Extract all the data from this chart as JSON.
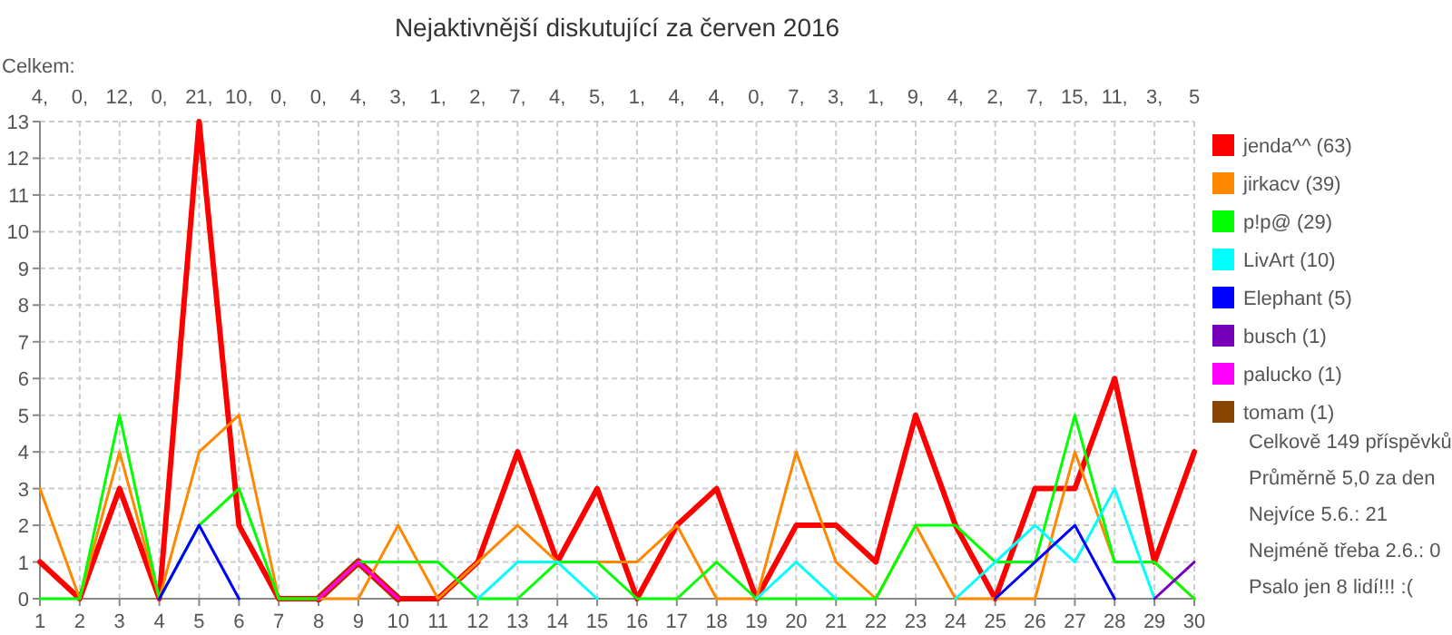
{
  "chart_data": {
    "type": "line",
    "title": "Nejaktivnější diskutující za červen 2016",
    "x": [
      1,
      2,
      3,
      4,
      5,
      6,
      7,
      8,
      9,
      10,
      11,
      12,
      13,
      14,
      15,
      16,
      17,
      18,
      19,
      20,
      21,
      22,
      23,
      24,
      25,
      26,
      27,
      28,
      29,
      30
    ],
    "xlim": [
      1,
      30
    ],
    "xticks": [
      1,
      2,
      3,
      4,
      5,
      6,
      7,
      8,
      9,
      10,
      11,
      12,
      13,
      14,
      15,
      16,
      17,
      18,
      19,
      20,
      21,
      22,
      23,
      24,
      25,
      26,
      27,
      28,
      29,
      30
    ],
    "ylim": [
      0,
      13
    ],
    "yticks": [
      0,
      1,
      2,
      3,
      4,
      5,
      6,
      7,
      8,
      9,
      10,
      11,
      12,
      13
    ],
    "grid": true,
    "legend": "right",
    "marker": "none",
    "line_style": "solid",
    "totals": [
      "4,",
      "0,",
      "12,",
      "0,",
      "21,",
      "10,",
      "0,",
      "0,",
      "4,",
      "3,",
      "1,",
      "2,",
      "7,",
      "4,",
      "5,",
      "1,",
      "4,",
      "4,",
      "0,",
      "7,",
      "3,",
      "1,",
      "9,",
      "4,",
      "2,",
      "7,",
      "15,",
      "11,",
      "3,",
      "5"
    ],
    "annotations": [
      "Celkem:",
      "Celkově 149 příspěvků",
      "Průměrně 5,0 za den",
      "Nejvíce 5.6.: 21",
      "Nejméně třeba 2.6.: 0",
      "Psalo jen 8 lidí!!! :("
    ],
    "series": [
      {
        "name": "jenda^^ (63)",
        "color": "#ff0000",
        "values": [
          1,
          0,
          3,
          0,
          13,
          2,
          0,
          0,
          1,
          0,
          0,
          1,
          4,
          1,
          3,
          0,
          2,
          3,
          0,
          2,
          2,
          1,
          5,
          2,
          0,
          3,
          3,
          6,
          1,
          4
        ]
      },
      {
        "name": "jirkacv (39)",
        "color": "#ff8800",
        "values": [
          3,
          0,
          4,
          0,
          4,
          5,
          0,
          0,
          0,
          2,
          0,
          1,
          2,
          1,
          1,
          1,
          2,
          0,
          0,
          4,
          1,
          0,
          2,
          0,
          0,
          0,
          4,
          1,
          1,
          0
        ]
      },
      {
        "name": "p!p@ (29)",
        "color": "#00ff00",
        "values": [
          0,
          0,
          5,
          0,
          2,
          3,
          0,
          0,
          1,
          1,
          1,
          0,
          0,
          1,
          1,
          0,
          0,
          1,
          0,
          0,
          0,
          0,
          2,
          2,
          1,
          1,
          5,
          1,
          1,
          0
        ]
      },
      {
        "name": "LivArt (10)",
        "color": "#00ffff",
        "values": [
          null,
          null,
          null,
          null,
          null,
          null,
          null,
          null,
          null,
          null,
          null,
          0,
          1,
          1,
          0,
          null,
          null,
          null,
          0,
          1,
          0,
          null,
          null,
          0,
          1,
          2,
          1,
          3,
          0,
          null
        ]
      },
      {
        "name": "Elephant (5)",
        "color": "#0000ff",
        "values": [
          null,
          null,
          null,
          0,
          2,
          0,
          null,
          null,
          null,
          null,
          null,
          null,
          null,
          null,
          null,
          null,
          null,
          null,
          null,
          null,
          null,
          null,
          null,
          null,
          0,
          1,
          2,
          0,
          null,
          null
        ]
      },
      {
        "name": "busch (1)",
        "color": "#7700bb",
        "values": [
          null,
          null,
          null,
          null,
          null,
          null,
          null,
          null,
          null,
          null,
          null,
          null,
          null,
          null,
          null,
          null,
          null,
          null,
          null,
          null,
          null,
          null,
          null,
          null,
          null,
          null,
          null,
          null,
          0,
          1
        ]
      },
      {
        "name": "palucko (1)",
        "color": "#ff00ff",
        "values": [
          null,
          null,
          null,
          null,
          null,
          null,
          null,
          0,
          1,
          0,
          null,
          null,
          null,
          null,
          null,
          null,
          null,
          null,
          null,
          null,
          null,
          null,
          null,
          null,
          null,
          null,
          null,
          null,
          null,
          null
        ]
      },
      {
        "name": "tomam (1)",
        "color": "#884400",
        "values": [
          null,
          null,
          null,
          null,
          null,
          null,
          null,
          0,
          1,
          0,
          null,
          null,
          null,
          null,
          null,
          null,
          null,
          null,
          null,
          null,
          null,
          null,
          null,
          null,
          null,
          null,
          null,
          null,
          null,
          null
        ]
      }
    ]
  }
}
